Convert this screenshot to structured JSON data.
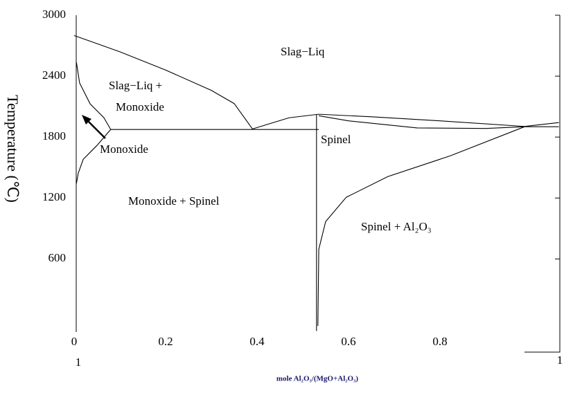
{
  "chart_data": {
    "type": "line",
    "x_label": "mole Al₂O₃/(MgO+Al₂O₃)",
    "y_label": "Temperature (℃)",
    "xlim": [
      0,
      1.06
    ],
    "ylim": [
      -120,
      3000
    ],
    "xticks": [
      0,
      0.2,
      0.4,
      0.6,
      0.8
    ],
    "yticks": [
      600,
      1200,
      1800,
      2400,
      3000
    ],
    "color": "#000000",
    "curves": [
      {
        "x": [
          0,
          0.1,
          0.2,
          0.3,
          0.35,
          0.39
        ],
        "values": [
          2800,
          2640,
          2460,
          2260,
          2130,
          1880
        ]
      },
      {
        "x": [
          0.39,
          0.47,
          0.535,
          0.65,
          0.8,
          0.985,
          1.06
        ],
        "values": [
          1880,
          1990,
          2025,
          2000,
          1960,
          1905,
          1943
        ]
      },
      {
        "x": [
          0.535,
          0.6,
          0.75,
          0.9,
          0.985
        ],
        "values": [
          2010,
          1960,
          1890,
          1885,
          1902
        ]
      },
      {
        "x": [
          0.08,
          0.535
        ],
        "values": [
          1875,
          1875
        ]
      },
      {
        "x": [
          0.985,
          1.06
        ],
        "values": [
          1902,
          1902
        ]
      },
      {
        "x": [
          0.53,
          0.53
        ],
        "values": [
          2020,
          -110
        ]
      },
      {
        "x": [
          0.533,
          0.535,
          0.55,
          0.595,
          0.686,
          0.823,
          0.985
        ],
        "values": [
          -60,
          695,
          968,
          1207,
          1411,
          1616,
          1902
        ]
      },
      {
        "x": [
          0.005,
          0.012,
          0.035,
          0.065,
          0.08,
          0.05,
          0.02,
          0.009,
          0.005
        ],
        "values": [
          2536,
          2332,
          2127,
          1991,
          1875,
          1718,
          1582,
          1445,
          1343
        ]
      }
    ],
    "annotations": [
      "Slag−Liq",
      "Slag−Liq +",
      "Monoxide",
      "Monoxide",
      "Monoxide + Spinel",
      "Spinel",
      "Spinel + Al₂O₃",
      "1",
      "1"
    ]
  }
}
